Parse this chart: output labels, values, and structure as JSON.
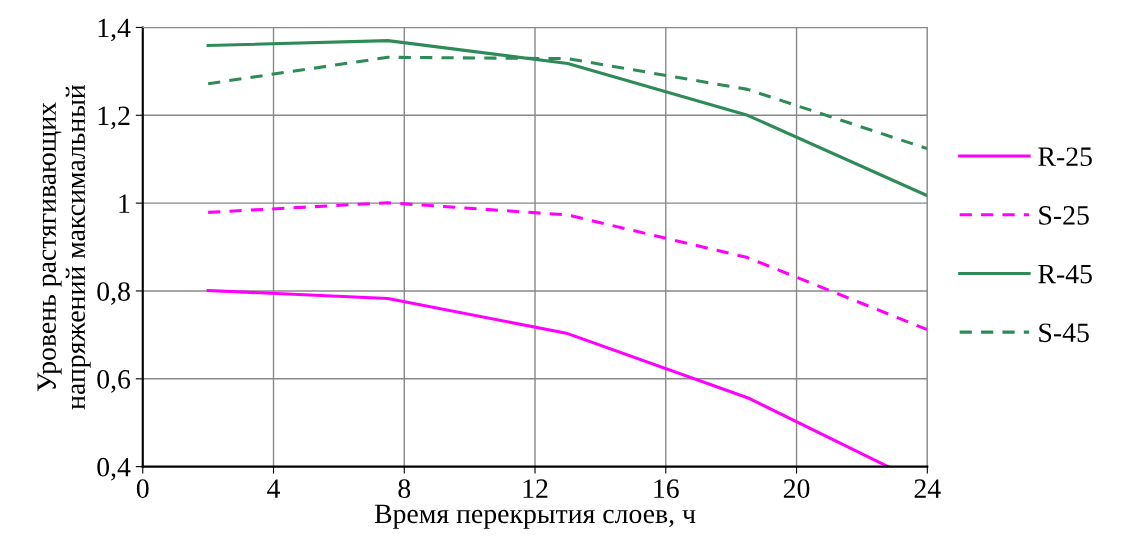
{
  "chart_data": {
    "type": "line",
    "xlabel": "Время перекрытия слоев, ч",
    "ylabel": "Уровень растягивающих\nнапряжений максимальный",
    "x": [
      2,
      7.5,
      13,
      18.5,
      24
    ],
    "series": [
      {
        "name": "R-25",
        "color": "#ff00ff",
        "line_style": "solid",
        "x": [
          2,
          7.5,
          13,
          18.5,
          22.8
        ],
        "values": [
          0.801,
          0.783,
          0.703,
          0.557,
          0.4
        ]
      },
      {
        "name": "S-25",
        "color": "#ff00ff",
        "line_style": "dashed",
        "values": [
          0.979,
          1.001,
          0.973,
          0.876,
          0.712
        ]
      },
      {
        "name": "R-45",
        "color": "#2e8b57",
        "line_style": "solid",
        "values": [
          1.359,
          1.37,
          1.318,
          1.2,
          1.017
        ]
      },
      {
        "name": "S-45",
        "color": "#2e8b57",
        "line_style": "dashed",
        "values": [
          1.272,
          1.332,
          1.329,
          1.259,
          1.124
        ]
      }
    ],
    "xlim": [
      0,
      24
    ],
    "xticks": [
      0,
      4,
      8,
      12,
      16,
      20,
      24
    ],
    "ylim": [
      0.4,
      1.4
    ],
    "yticks": [
      {
        "value": 0.4,
        "label": "0,4"
      },
      {
        "value": 0.6,
        "label": "0,6"
      },
      {
        "value": 0.8,
        "label": "0,8"
      },
      1,
      {
        "value": 1.2,
        "label": "1,2"
      },
      {
        "value": 1.4,
        "label": "1,4"
      }
    ],
    "grid": true,
    "legend": "right",
    "marker": "none"
  }
}
